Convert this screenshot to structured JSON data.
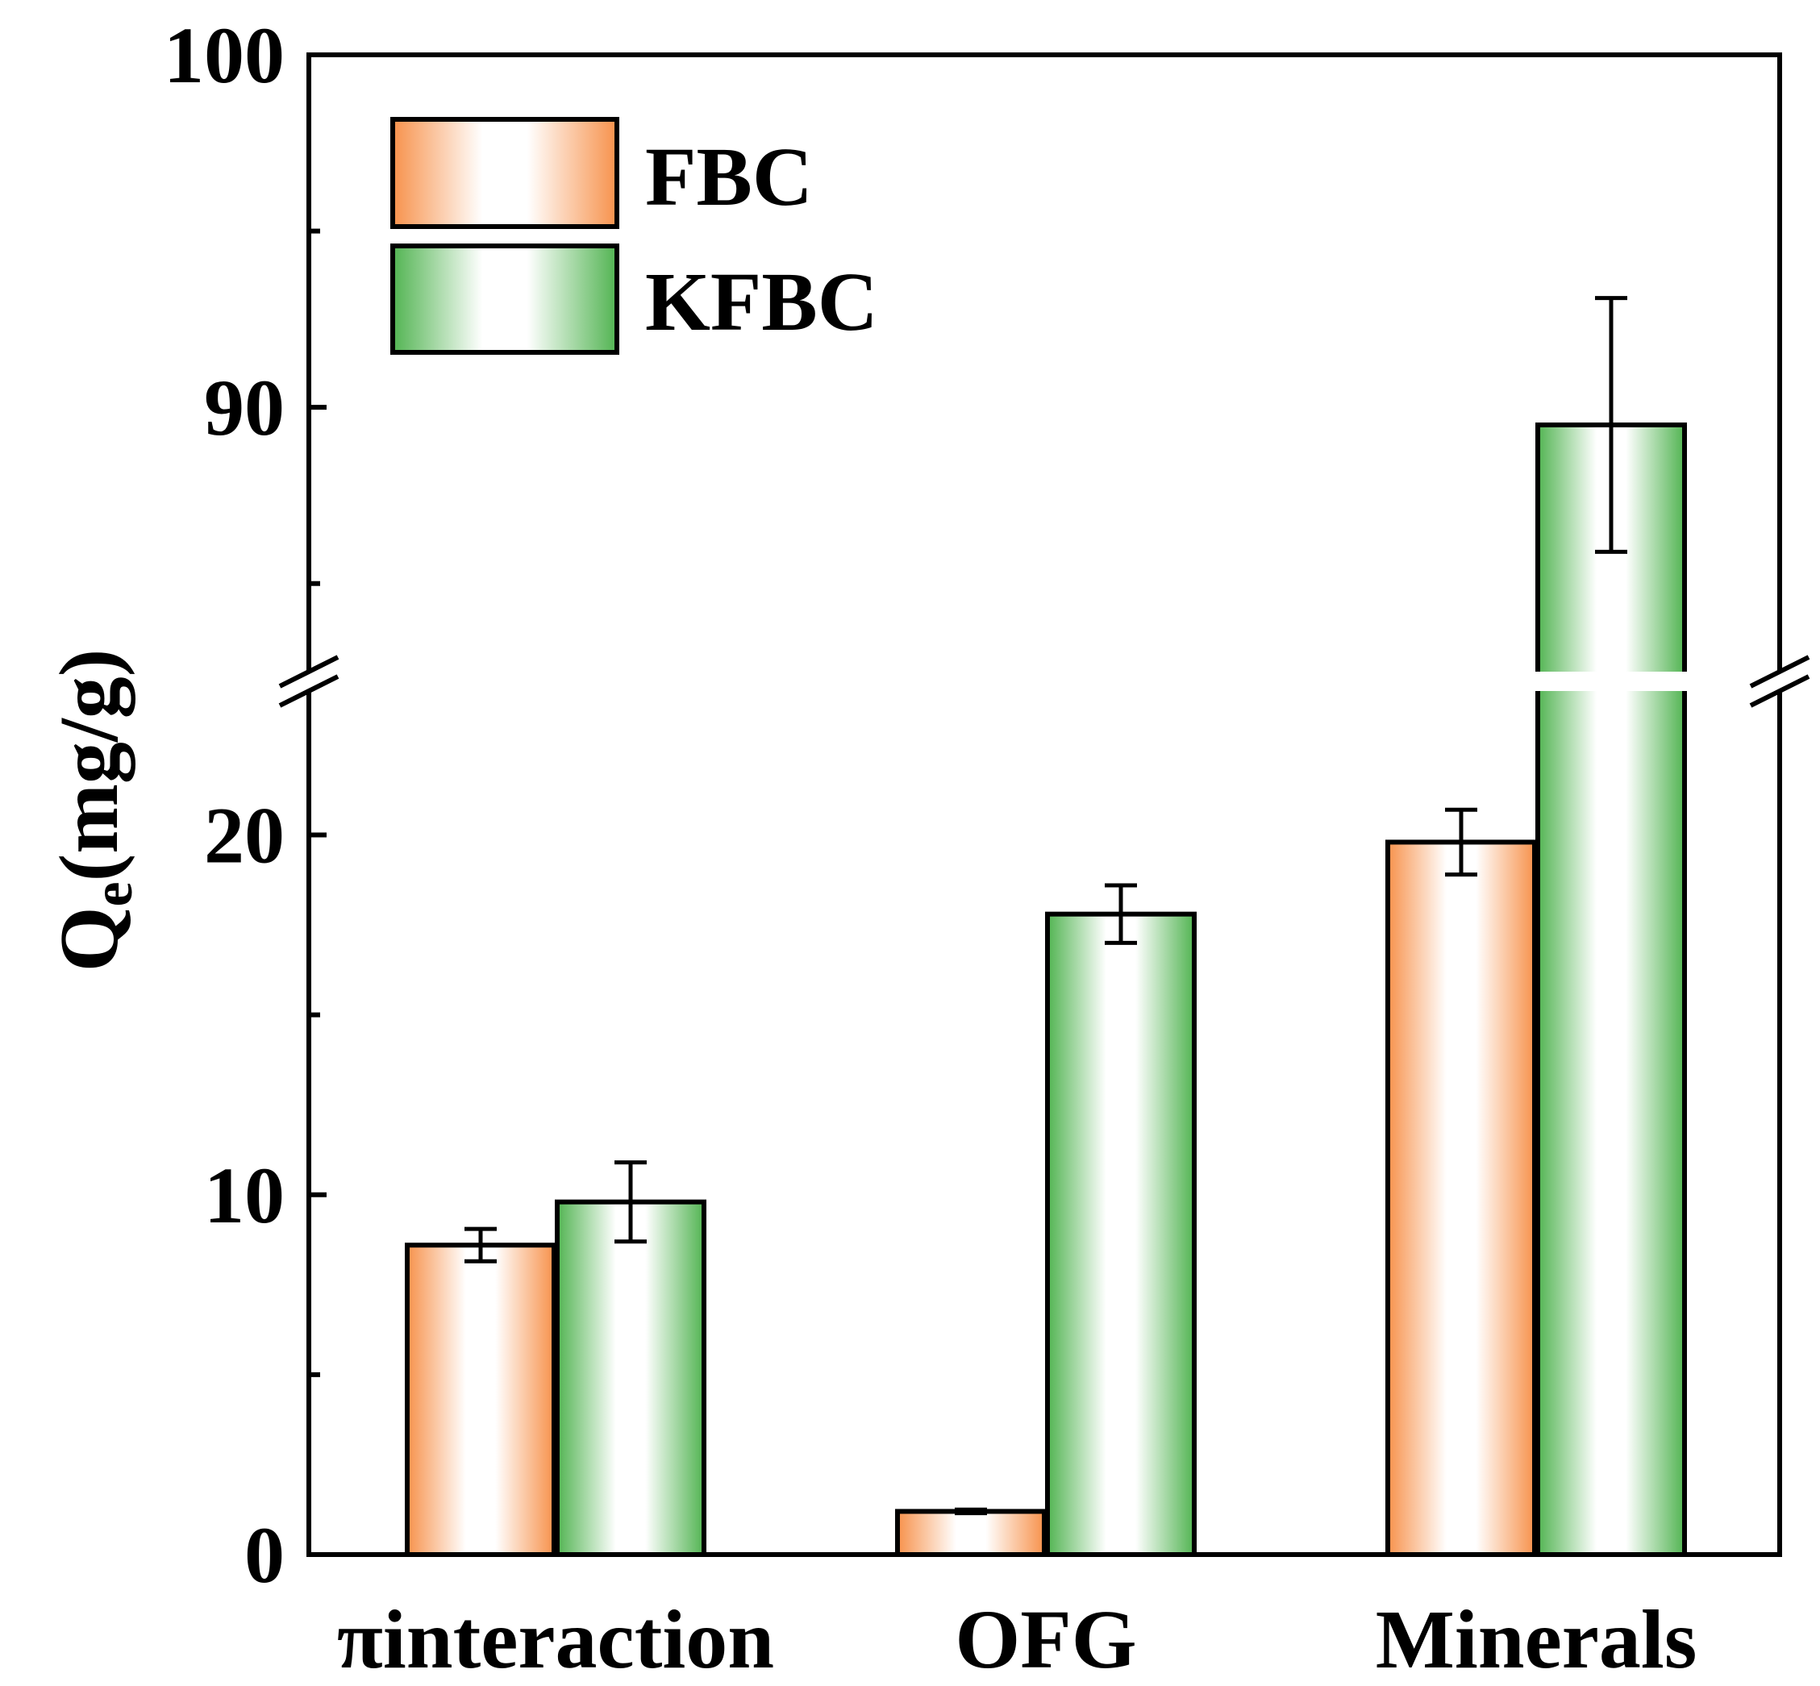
{
  "chart_data": {
    "type": "bar",
    "title": "",
    "xlabel": "",
    "ylabel": "Q_e(mg/g)",
    "ylabel_main": "Q",
    "ylabel_sub": "e",
    "ylabel_rest": "(mg/g)",
    "categories": [
      "πinteraction",
      "OFG",
      "Minerals"
    ],
    "series": [
      {
        "name": "FBC",
        "color": "#f7924c",
        "values": [
          8.6,
          1.2,
          19.8
        ],
        "errors": [
          0.45,
          0.05,
          0.9
        ]
      },
      {
        "name": "KFBC",
        "color": "#52b452",
        "values": [
          9.8,
          17.8,
          89.5
        ],
        "errors": [
          1.1,
          0.8,
          3.6
        ]
      }
    ],
    "axis_break": {
      "lower_range": [
        0,
        24
      ],
      "upper_range": [
        82.5,
        100
      ]
    },
    "yticks_labeled": [
      0,
      10,
      20,
      90,
      100
    ],
    "yticks_minor": [
      5,
      15,
      85,
      95
    ],
    "ylim": [
      0,
      100
    ],
    "legend_position": "top-left"
  }
}
